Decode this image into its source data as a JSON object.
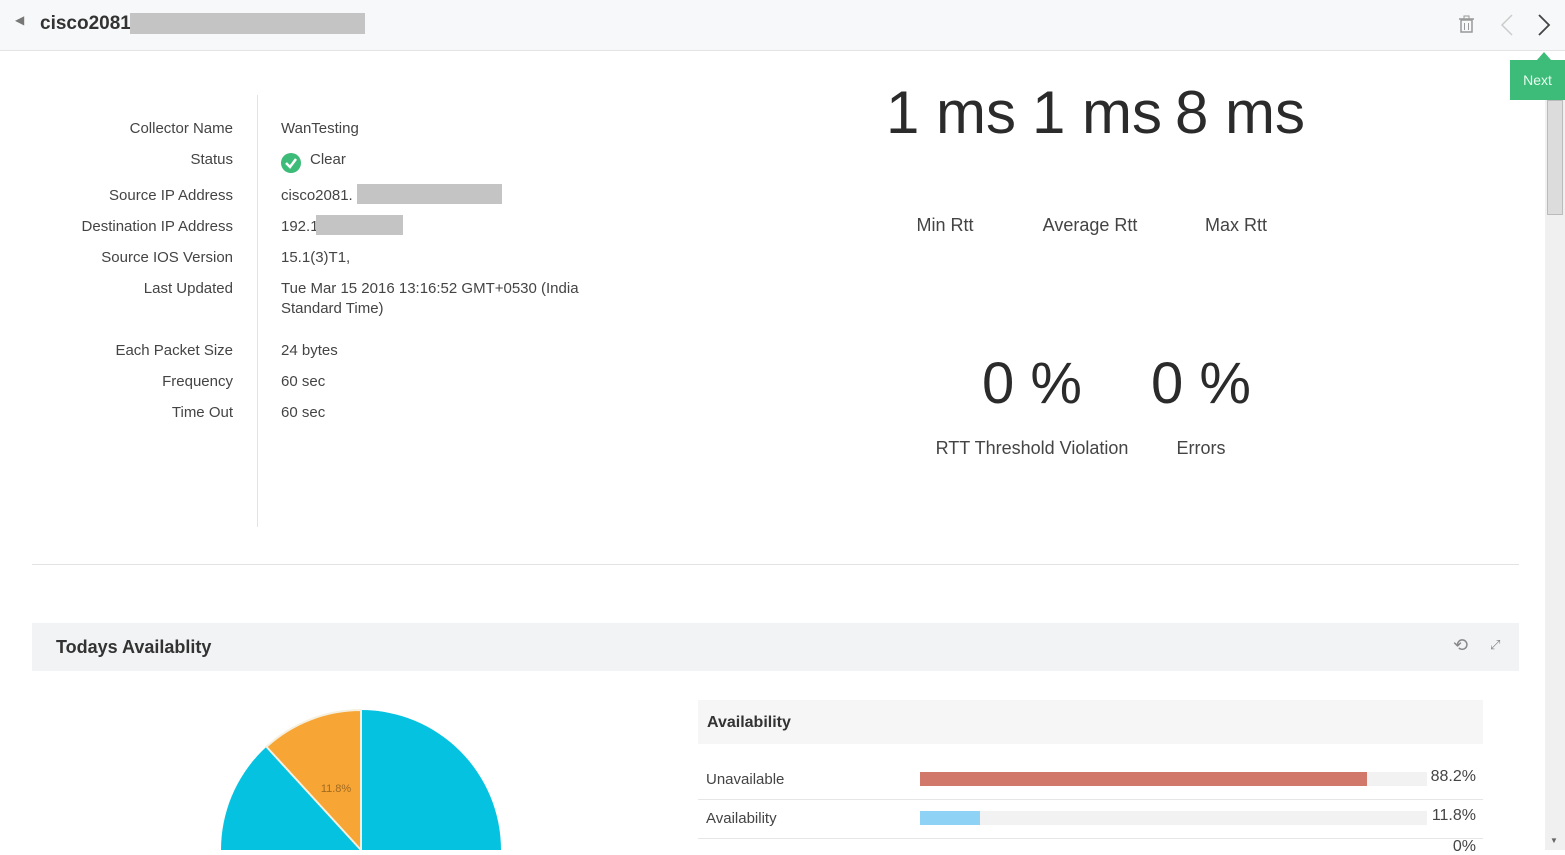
{
  "header": {
    "title": "cisco2081.",
    "next_tooltip": "Next"
  },
  "details": [
    {
      "label": "Collector Name",
      "value": "WanTesting"
    },
    {
      "label": "Status",
      "value": "Clear"
    },
    {
      "label": "Source IP Address",
      "value": "cisco2081."
    },
    {
      "label": "Destination IP Address",
      "value": "192.1"
    },
    {
      "label": "Source IOS Version",
      "value": "15.1(3)T1,"
    },
    {
      "label": "Last Updated",
      "value": "Tue Mar 15 2016 13:16:52 GMT+0530 (India Standard Time)"
    },
    {
      "label": "Each Packet Size",
      "value": "24 bytes"
    },
    {
      "label": "Frequency",
      "value": "60 sec"
    },
    {
      "label": "Time Out",
      "value": "60 sec"
    }
  ],
  "metrics": {
    "min_rtt": {
      "value": "1 ms",
      "label": "Min Rtt"
    },
    "avg_rtt": {
      "value": "1 ms",
      "label": "Average Rtt"
    },
    "max_rtt": {
      "value": "8 ms",
      "label": "Max Rtt"
    },
    "rtt_violation": {
      "value": "0 %",
      "label": "RTT Threshold Violation"
    },
    "errors": {
      "value": "0 %",
      "label": "Errors"
    }
  },
  "availability_panel": {
    "title": "Todays Availablity",
    "pie_label": "11.8%",
    "table_title": "Availability",
    "rows": [
      {
        "label": "Unavailable",
        "value": "88.2%",
        "percent": 88.2,
        "color": "#d2786a"
      },
      {
        "label": "Availability",
        "value": "11.8%",
        "percent": 11.8,
        "color": "#8ed3f5"
      },
      {
        "label": "",
        "value": "0%",
        "percent": 0,
        "color": "#cccccc"
      }
    ],
    "pie": {
      "orange": "#f7a535",
      "cyan": "#05c3e0",
      "orange_percent": 11.8
    }
  }
}
